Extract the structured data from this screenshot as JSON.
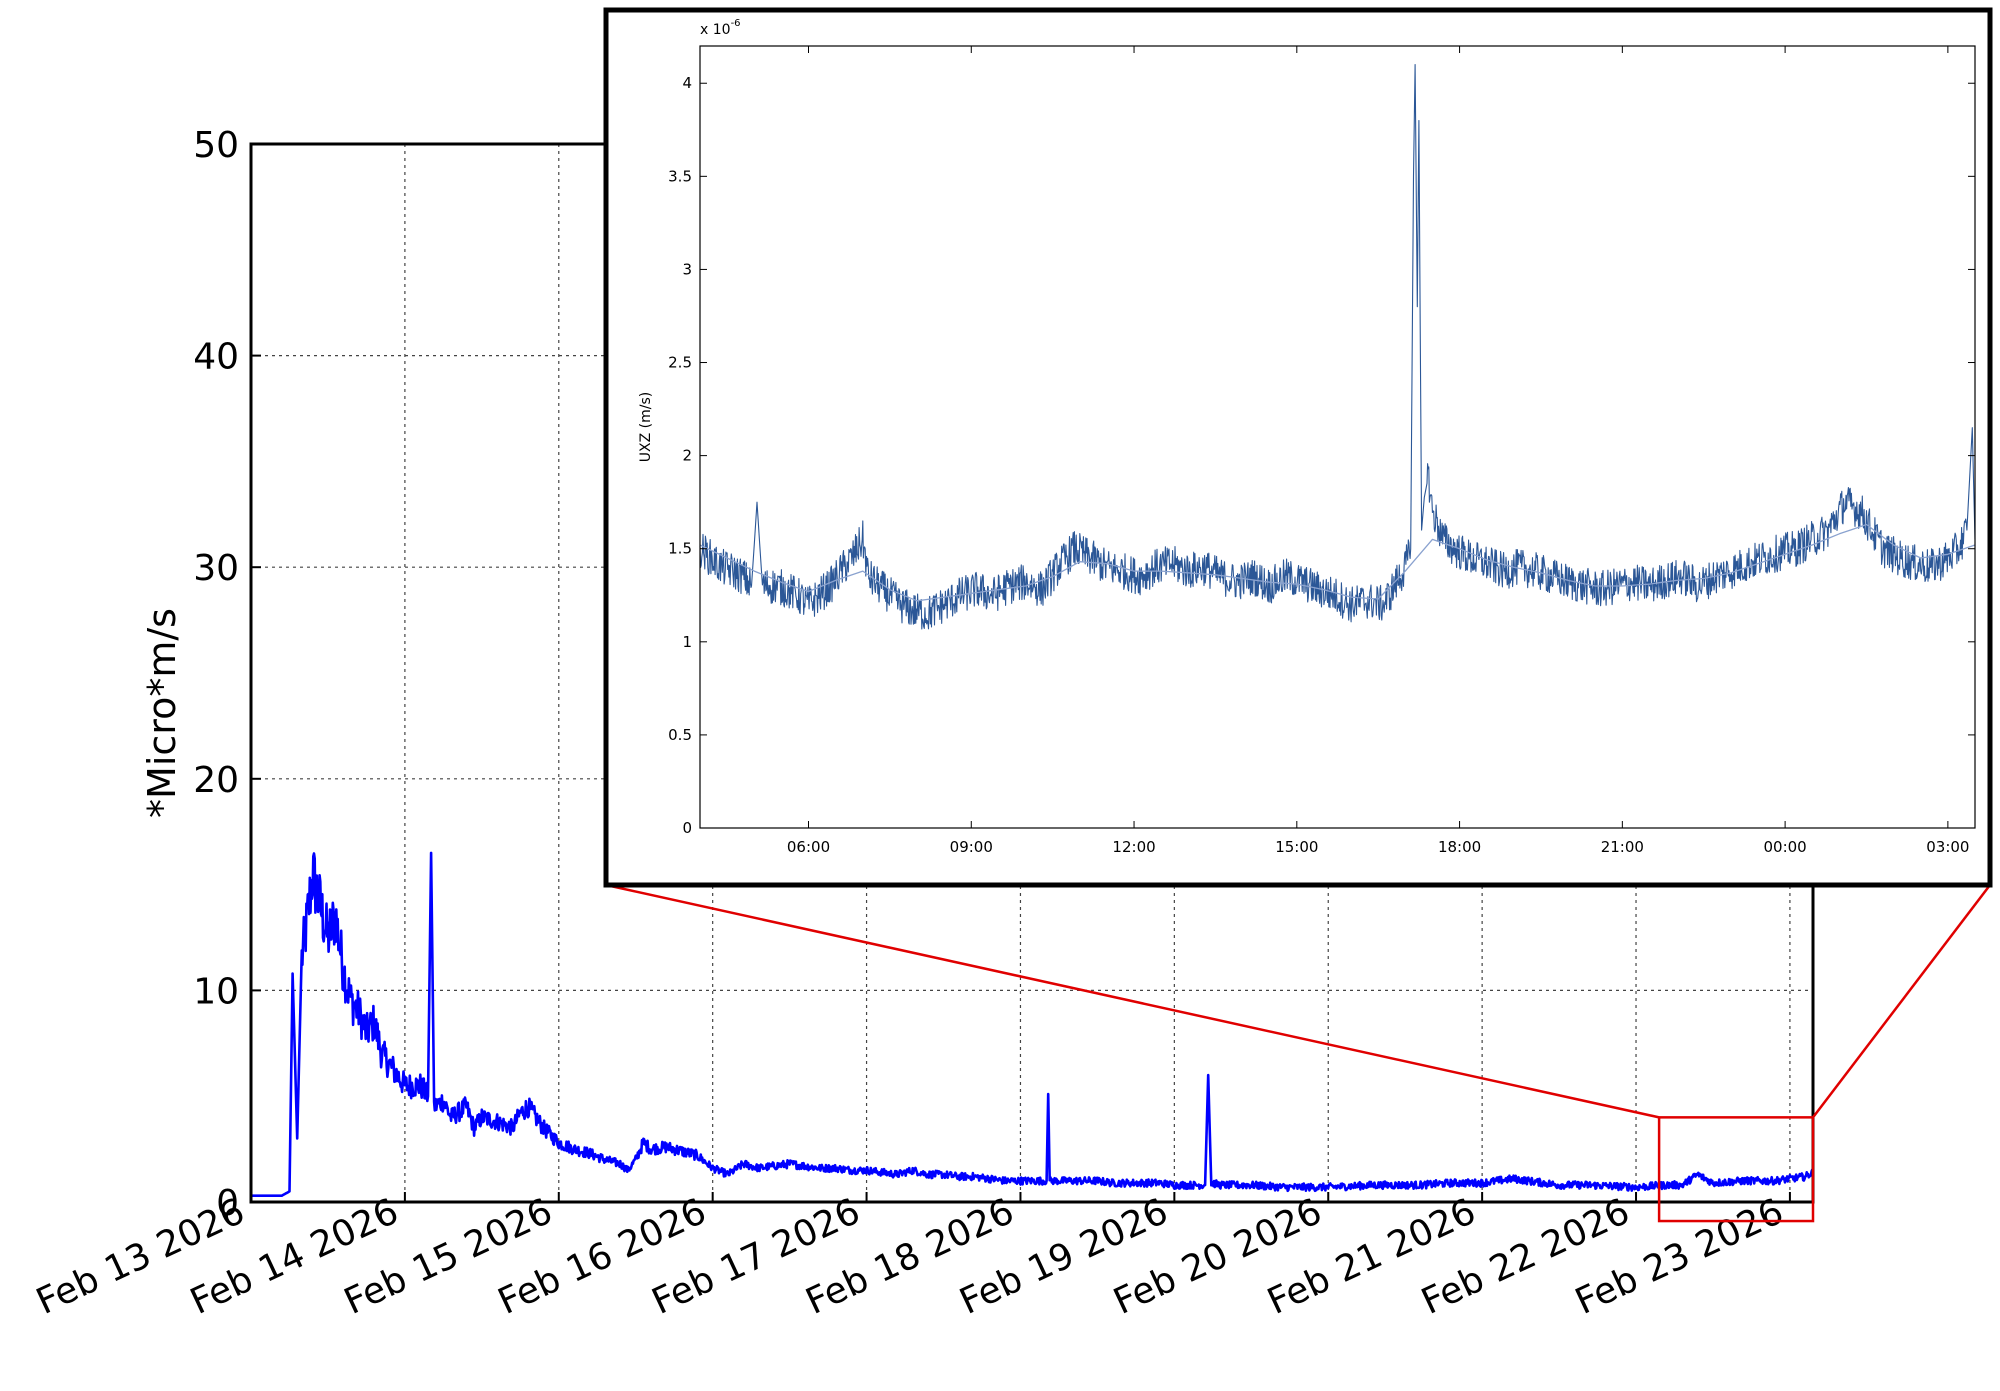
{
  "chart_data": [
    {
      "id": "main",
      "type": "line",
      "title": "",
      "xlabel": "",
      "ylabel": "*Micro*m/s",
      "ylim": [
        0,
        50
      ],
      "xlim_days_from_first_tick": [
        0,
        10.15
      ],
      "grid": true,
      "yticks": [
        0,
        10,
        20,
        30,
        40,
        50
      ],
      "xtick_labels": [
        "Feb 13 2026",
        "Feb 14 2026",
        "Feb 15 2026",
        "Feb 16 2026",
        "Feb 17 2026",
        "Feb 18 2026",
        "Feb 19 2026",
        "Feb 20 2026",
        "Feb 21 2026",
        "Feb 22 2026",
        "Feb 23 2026"
      ],
      "series": [
        {
          "color": "#0000ff",
          "points": [
            [
              0.0,
              0.3
            ],
            [
              0.1,
              0.3
            ],
            [
              0.2,
              0.3
            ],
            [
              0.25,
              0.5
            ],
            [
              0.27,
              10.8
            ],
            [
              0.3,
              3.0
            ],
            [
              0.33,
              11.5
            ],
            [
              0.36,
              13.0
            ],
            [
              0.4,
              15.5
            ],
            [
              0.45,
              14.0
            ],
            [
              0.5,
              12.5
            ],
            [
              0.55,
              13.5
            ],
            [
              0.6,
              11.0
            ],
            [
              0.65,
              9.5
            ],
            [
              0.7,
              9.0
            ],
            [
              0.75,
              8.0
            ],
            [
              0.8,
              8.5
            ],
            [
              0.85,
              7.0
            ],
            [
              0.9,
              6.5
            ],
            [
              1.0,
              5.5
            ],
            [
              1.1,
              5.5
            ],
            [
              1.15,
              5.0
            ],
            [
              1.17,
              16.5
            ],
            [
              1.19,
              4.5
            ],
            [
              1.25,
              4.8
            ],
            [
              1.3,
              4.0
            ],
            [
              1.4,
              4.5
            ],
            [
              1.45,
              3.5
            ],
            [
              1.5,
              4.0
            ],
            [
              1.6,
              3.8
            ],
            [
              1.7,
              3.5
            ],
            [
              1.75,
              4.2
            ],
            [
              1.8,
              4.5
            ],
            [
              1.85,
              4.0
            ],
            [
              1.9,
              3.5
            ],
            [
              2.0,
              2.8
            ],
            [
              2.1,
              2.5
            ],
            [
              2.2,
              2.3
            ],
            [
              2.3,
              2.0
            ],
            [
              2.4,
              1.8
            ],
            [
              2.45,
              1.5
            ],
            [
              2.5,
              2.0
            ],
            [
              2.55,
              2.8
            ],
            [
              2.6,
              2.5
            ],
            [
              2.7,
              2.6
            ],
            [
              2.8,
              2.4
            ],
            [
              2.9,
              2.2
            ],
            [
              3.0,
              1.6
            ],
            [
              3.1,
              1.3
            ],
            [
              3.2,
              1.8
            ],
            [
              3.3,
              1.6
            ],
            [
              3.4,
              1.7
            ],
            [
              3.5,
              1.8
            ],
            [
              3.6,
              1.7
            ],
            [
              3.7,
              1.6
            ],
            [
              3.8,
              1.6
            ],
            [
              3.9,
              1.5
            ],
            [
              4.0,
              1.5
            ],
            [
              4.1,
              1.4
            ],
            [
              4.2,
              1.3
            ],
            [
              4.3,
              1.5
            ],
            [
              4.4,
              1.3
            ],
            [
              4.5,
              1.3
            ],
            [
              4.6,
              1.2
            ],
            [
              4.7,
              1.2
            ],
            [
              4.8,
              1.1
            ],
            [
              4.9,
              1.0
            ],
            [
              5.0,
              1.0
            ],
            [
              5.1,
              1.0
            ],
            [
              5.17,
              1.0
            ],
            [
              5.18,
              5.1
            ],
            [
              5.19,
              1.0
            ],
            [
              5.3,
              1.0
            ],
            [
              5.4,
              1.0
            ],
            [
              5.5,
              1.0
            ],
            [
              5.6,
              0.9
            ],
            [
              5.7,
              0.9
            ],
            [
              5.8,
              0.9
            ],
            [
              5.9,
              0.9
            ],
            [
              6.0,
              0.8
            ],
            [
              6.1,
              0.8
            ],
            [
              6.2,
              0.8
            ],
            [
              6.22,
              6.0
            ],
            [
              6.24,
              0.9
            ],
            [
              6.3,
              0.8
            ],
            [
              6.5,
              0.8
            ],
            [
              6.7,
              0.7
            ],
            [
              7.0,
              0.7
            ],
            [
              7.3,
              0.8
            ],
            [
              7.6,
              0.8
            ],
            [
              7.8,
              0.9
            ],
            [
              8.0,
              0.9
            ],
            [
              8.2,
              1.1
            ],
            [
              8.3,
              1.0
            ],
            [
              8.5,
              0.8
            ],
            [
              8.7,
              0.8
            ],
            [
              9.0,
              0.7
            ],
            [
              9.2,
              0.8
            ],
            [
              9.3,
              0.8
            ],
            [
              9.4,
              1.3
            ],
            [
              9.5,
              0.9
            ],
            [
              9.7,
              1.0
            ],
            [
              9.9,
              1.0
            ],
            [
              10.0,
              1.1
            ],
            [
              10.1,
              1.2
            ],
            [
              10.15,
              1.4
            ]
          ]
        }
      ]
    },
    {
      "id": "inset",
      "type": "line",
      "title": "",
      "xlabel": "",
      "ylabel": "UXZ (m/s)",
      "y_exponent_label": "x 10",
      "y_exponent_power": "-6",
      "ylim": [
        0,
        4.2
      ],
      "yticks": [
        0,
        0.5,
        1,
        1.5,
        2,
        2.5,
        3,
        3.5,
        4
      ],
      "ytick_labels": [
        "0",
        "0.5",
        "1",
        "1.5",
        "2",
        "2.5",
        "3",
        "3.5",
        "4"
      ],
      "xlim_hours": [
        4.0,
        27.5
      ],
      "xticks_hours": [
        6,
        9,
        12,
        15,
        18,
        21,
        24,
        27
      ],
      "xtick_labels": [
        "06:00",
        "09:00",
        "12:00",
        "15:00",
        "18:00",
        "21:00",
        "00:00",
        "03:00"
      ],
      "grid": false,
      "series": [
        {
          "color": "#2b5797",
          "points": [
            [
              4.0,
              1.5
            ],
            [
              4.2,
              1.45
            ],
            [
              4.4,
              1.4
            ],
            [
              4.6,
              1.38
            ],
            [
              4.8,
              1.35
            ],
            [
              4.95,
              1.3
            ],
            [
              5.05,
              1.75
            ],
            [
              5.15,
              1.3
            ],
            [
              5.4,
              1.3
            ],
            [
              5.6,
              1.28
            ],
            [
              5.8,
              1.25
            ],
            [
              6.0,
              1.2
            ],
            [
              6.2,
              1.25
            ],
            [
              6.4,
              1.3
            ],
            [
              6.6,
              1.38
            ],
            [
              6.8,
              1.45
            ],
            [
              7.0,
              1.55
            ],
            [
              7.1,
              1.35
            ],
            [
              7.3,
              1.3
            ],
            [
              7.5,
              1.25
            ],
            [
              7.7,
              1.2
            ],
            [
              7.9,
              1.17
            ],
            [
              8.2,
              1.15
            ],
            [
              8.5,
              1.2
            ],
            [
              8.8,
              1.25
            ],
            [
              9.1,
              1.28
            ],
            [
              9.4,
              1.25
            ],
            [
              9.7,
              1.3
            ],
            [
              10.0,
              1.32
            ],
            [
              10.3,
              1.28
            ],
            [
              10.6,
              1.4
            ],
            [
              10.9,
              1.5
            ],
            [
              11.2,
              1.45
            ],
            [
              11.5,
              1.4
            ],
            [
              11.8,
              1.38
            ],
            [
              12.1,
              1.35
            ],
            [
              12.4,
              1.4
            ],
            [
              12.7,
              1.42
            ],
            [
              13.0,
              1.38
            ],
            [
              13.3,
              1.4
            ],
            [
              13.6,
              1.35
            ],
            [
              13.9,
              1.32
            ],
            [
              14.2,
              1.35
            ],
            [
              14.5,
              1.3
            ],
            [
              14.8,
              1.35
            ],
            [
              15.1,
              1.32
            ],
            [
              15.4,
              1.28
            ],
            [
              15.7,
              1.25
            ],
            [
              16.0,
              1.2
            ],
            [
              16.3,
              1.22
            ],
            [
              16.6,
              1.2
            ],
            [
              16.8,
              1.3
            ],
            [
              17.0,
              1.4
            ],
            [
              17.1,
              1.5
            ],
            [
              17.15,
              3.5
            ],
            [
              17.18,
              4.1
            ],
            [
              17.22,
              2.8
            ],
            [
              17.25,
              3.8
            ],
            [
              17.3,
              1.6
            ],
            [
              17.4,
              1.95
            ],
            [
              17.5,
              1.7
            ],
            [
              17.7,
              1.55
            ],
            [
              17.9,
              1.5
            ],
            [
              18.2,
              1.45
            ],
            [
              18.5,
              1.42
            ],
            [
              18.8,
              1.38
            ],
            [
              19.1,
              1.4
            ],
            [
              19.4,
              1.38
            ],
            [
              19.7,
              1.35
            ],
            [
              20.0,
              1.32
            ],
            [
              20.3,
              1.3
            ],
            [
              20.6,
              1.28
            ],
            [
              20.9,
              1.3
            ],
            [
              21.2,
              1.32
            ],
            [
              21.5,
              1.3
            ],
            [
              21.8,
              1.33
            ],
            [
              22.1,
              1.35
            ],
            [
              22.4,
              1.3
            ],
            [
              22.7,
              1.35
            ],
            [
              23.0,
              1.38
            ],
            [
              23.3,
              1.42
            ],
            [
              23.6,
              1.45
            ],
            [
              23.9,
              1.48
            ],
            [
              24.2,
              1.5
            ],
            [
              24.5,
              1.55
            ],
            [
              24.8,
              1.6
            ],
            [
              25.1,
              1.75
            ],
            [
              25.4,
              1.7
            ],
            [
              25.6,
              1.6
            ],
            [
              25.8,
              1.5
            ],
            [
              26.1,
              1.45
            ],
            [
              26.4,
              1.42
            ],
            [
              26.7,
              1.4
            ],
            [
              27.0,
              1.45
            ],
            [
              27.2,
              1.5
            ],
            [
              27.35,
              1.6
            ],
            [
              27.45,
              2.15
            ],
            [
              27.5,
              1.55
            ]
          ]
        },
        {
          "color": "#8aa2cf",
          "points": [
            [
              4.0,
              1.52
            ],
            [
              4.5,
              1.45
            ],
            [
              5.0,
              1.38
            ],
            [
              5.5,
              1.32
            ],
            [
              6.0,
              1.27
            ],
            [
              6.5,
              1.33
            ],
            [
              7.0,
              1.38
            ],
            [
              7.5,
              1.28
            ],
            [
              8.0,
              1.22
            ],
            [
              8.5,
              1.24
            ],
            [
              9.0,
              1.26
            ],
            [
              9.5,
              1.28
            ],
            [
              10.0,
              1.3
            ],
            [
              10.5,
              1.35
            ],
            [
              11.0,
              1.43
            ],
            [
              11.5,
              1.42
            ],
            [
              12.0,
              1.38
            ],
            [
              12.5,
              1.38
            ],
            [
              13.0,
              1.37
            ],
            [
              13.5,
              1.36
            ],
            [
              14.0,
              1.34
            ],
            [
              14.5,
              1.32
            ],
            [
              15.0,
              1.31
            ],
            [
              15.5,
              1.28
            ],
            [
              16.0,
              1.24
            ],
            [
              16.5,
              1.23
            ],
            [
              17.0,
              1.38
            ],
            [
              17.5,
              1.55
            ],
            [
              18.0,
              1.5
            ],
            [
              18.5,
              1.44
            ],
            [
              19.0,
              1.4
            ],
            [
              19.5,
              1.37
            ],
            [
              20.0,
              1.33
            ],
            [
              20.5,
              1.3
            ],
            [
              21.0,
              1.3
            ],
            [
              21.5,
              1.31
            ],
            [
              22.0,
              1.33
            ],
            [
              22.5,
              1.34
            ],
            [
              23.0,
              1.37
            ],
            [
              23.5,
              1.42
            ],
            [
              24.0,
              1.47
            ],
            [
              24.5,
              1.52
            ],
            [
              25.0,
              1.58
            ],
            [
              25.5,
              1.63
            ],
            [
              26.0,
              1.52
            ],
            [
              26.5,
              1.45
            ],
            [
              27.0,
              1.47
            ],
            [
              27.5,
              1.52
            ]
          ]
        }
      ]
    }
  ]
}
